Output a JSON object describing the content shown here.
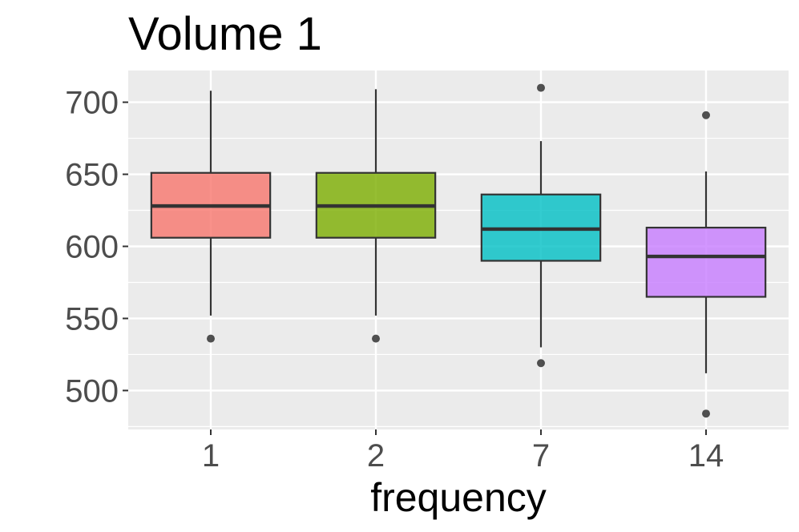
{
  "chart_data": {
    "type": "boxplot",
    "title": "Volume 1",
    "xlabel": "frequency",
    "ylabel": "",
    "categories": [
      "1",
      "2",
      "7",
      "14"
    ],
    "ylim": [
      473,
      722
    ],
    "yticks": [
      500,
      550,
      600,
      650,
      700
    ],
    "ytick_labels": [
      "500",
      "550",
      "600",
      "650",
      "700"
    ],
    "grid": true,
    "legend": "none",
    "boxes": [
      {
        "category": "1",
        "whisker_low": 552,
        "q1": 606,
        "median": 628,
        "q3": 651,
        "whisker_high": 708,
        "outliers": [
          536
        ],
        "color": "#F8766D"
      },
      {
        "category": "2",
        "whisker_low": 552,
        "q1": 606,
        "median": 628,
        "q3": 651,
        "whisker_high": 709,
        "outliers": [
          536
        ],
        "color": "#7CAE00"
      },
      {
        "category": "7",
        "whisker_low": 530,
        "q1": 590,
        "median": 612,
        "q3": 636,
        "whisker_high": 673,
        "outliers": [
          519,
          710
        ],
        "color": "#00BFC4"
      },
      {
        "category": "14",
        "whisker_low": 512,
        "q1": 565,
        "median": 593,
        "q3": 613,
        "whisker_high": 652,
        "outliers": [
          484,
          691
        ],
        "color": "#C77CFF"
      }
    ]
  }
}
